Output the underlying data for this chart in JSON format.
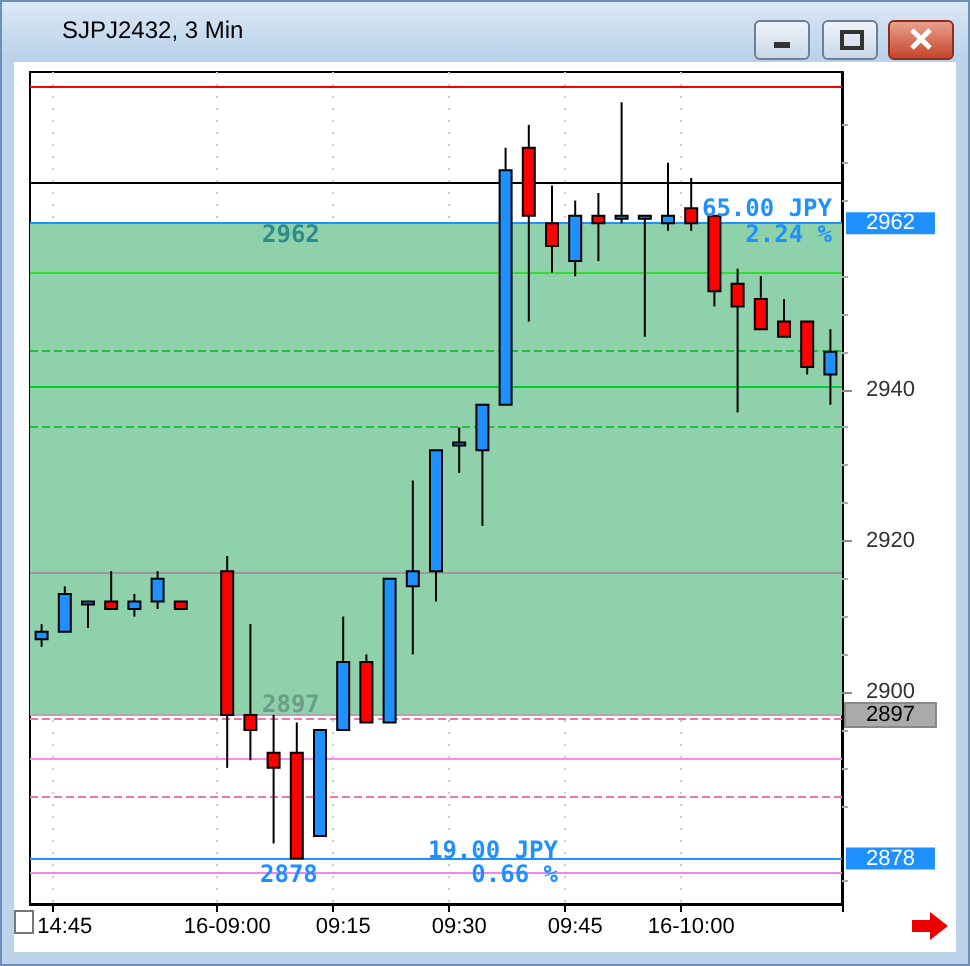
{
  "chart_data": {
    "type": "candlestick",
    "title": "SJPJ2432, 3 Min",
    "categories": [
      null,
      "14:45",
      null,
      null,
      null,
      null,
      null,
      null,
      "16-09:00",
      null,
      null,
      null,
      null,
      "09:15",
      null,
      null,
      null,
      null,
      "09:30",
      null,
      null,
      null,
      null,
      "09:45",
      null,
      null,
      null,
      null,
      "16-10:00",
      null,
      null,
      null,
      null,
      null,
      null
    ],
    "ohlc": [
      [
        2907,
        2909,
        2906,
        2908
      ],
      [
        2908,
        2914,
        2908,
        2913
      ],
      [
        2912,
        2912,
        2908.5,
        2912
      ],
      [
        2912,
        2916,
        2911,
        2911
      ],
      [
        2911,
        2913,
        2910,
        2912
      ],
      [
        2912,
        2916,
        2911,
        2915
      ],
      [
        2912,
        2912,
        2911,
        2911
      ],
      null,
      [
        2916,
        2918,
        2890,
        2897
      ],
      [
        2897,
        2909,
        2891,
        2895
      ],
      [
        2892,
        2897,
        2880,
        2890
      ],
      [
        2892,
        2896,
        2878,
        2878
      ],
      [
        2881,
        2895,
        2881,
        2895
      ],
      [
        2895,
        2910,
        2895,
        2904
      ],
      [
        2904,
        2905,
        2896,
        2896
      ],
      [
        2896,
        2915,
        2896,
        2915
      ],
      [
        2914,
        2928,
        2905,
        2916
      ],
      [
        2916,
        2932,
        2912,
        2932
      ],
      [
        2933,
        2935,
        2929,
        2933
      ],
      [
        2932,
        2938,
        2922,
        2938
      ],
      [
        2938,
        2972,
        2938,
        2969
      ],
      [
        2972,
        2975,
        2949,
        2963
      ],
      [
        2962,
        2967,
        2955.5,
        2959
      ],
      [
        2957,
        2965,
        2955,
        2963
      ],
      [
        2963,
        2966,
        2957,
        2962
      ],
      [
        2963,
        2978,
        2962,
        2963
      ],
      [
        2963,
        2963,
        2947,
        2963
      ],
      [
        2962,
        2970,
        2961,
        2963
      ],
      [
        2964,
        2968,
        2961,
        2962
      ],
      [
        2963,
        2963,
        2951,
        2953
      ],
      [
        2954,
        2956,
        2937,
        2951
      ],
      [
        2952,
        2955,
        2948,
        2948
      ],
      [
        2949,
        2952,
        2947,
        2947
      ],
      [
        2949,
        2949,
        2942,
        2943
      ],
      [
        2942,
        2948,
        2938,
        2945
      ]
    ],
    "colors": [
      "#1e90ff",
      "#1e90ff",
      "#1e90ff",
      "#ff0000",
      "#1e90ff",
      "#1e90ff",
      "#ff0000",
      null,
      "#ff0000",
      "#ff0000",
      "#ff0000",
      "#ff0000",
      "#1e90ff",
      "#1e90ff",
      "#ff0000",
      "#1e90ff",
      "#1e90ff",
      "#1e90ff",
      "#1e90ff",
      "#1e90ff",
      "#1e90ff",
      "#ff0000",
      "#ff0000",
      "#1e90ff",
      "#ff0000",
      "#1e90ff",
      "#1e90ff",
      "#1e90ff",
      "#ff0000",
      "#ff0000",
      "#ff0000",
      "#ff0000",
      "#ff0000",
      "#ff0000",
      "#1e90ff"
    ],
    "ylim": [
      2872,
      2982
    ],
    "yticks": [
      2900,
      2920,
      2940
    ],
    "grid": true,
    "bands": [
      {
        "axis": "y",
        "from": 2897,
        "to": 2962,
        "color": "#8fd1aa"
      }
    ],
    "ref_lines": [
      {
        "axis": "y",
        "value": 2980,
        "color": "#ff0000",
        "line_style": "solid"
      },
      {
        "axis": "y",
        "value": 2967.5,
        "color": "#000000",
        "line_style": "solid"
      },
      {
        "axis": "y",
        "value": 2962,
        "label": "2962",
        "color": "#1e90ff",
        "line_style": "solid"
      },
      {
        "axis": "y",
        "value": 2955.5,
        "color": "#33dd33",
        "line_style": "solid"
      },
      {
        "axis": "y",
        "value": 2945.3,
        "color": "#22bb44",
        "line_style": "dashed"
      },
      {
        "axis": "y",
        "value": 2940.4,
        "color": "#00cc33",
        "line_style": "solid"
      },
      {
        "axis": "y",
        "value": 2935,
        "color": "#22bb44",
        "line_style": "dashed"
      },
      {
        "axis": "y",
        "value": 2915.7,
        "color": "#999999",
        "line_style": "solid"
      },
      {
        "axis": "y",
        "value": 2897,
        "label": "2897",
        "color": "#aaaaaa",
        "line_style": "solid"
      },
      {
        "axis": "y",
        "value": 2896.5,
        "color": "#ee77aa",
        "line_style": "dashed"
      },
      {
        "axis": "y",
        "value": 2891.2,
        "color": "#ff88ee",
        "line_style": "solid"
      },
      {
        "axis": "y",
        "value": 2886.2,
        "color": "#ee77aa",
        "line_style": "dashed"
      },
      {
        "axis": "y",
        "value": 2878,
        "label": "2878",
        "color": "#1e90ff",
        "line_style": "solid"
      },
      {
        "axis": "y",
        "value": 2876.1,
        "color": "#ee88ee",
        "line_style": "solid"
      }
    ],
    "annotations": [
      "2962",
      "2897",
      "2878",
      "65.00 JPY",
      "2.24 %",
      "19.00 JPY",
      "0.66 %"
    ]
  }
}
